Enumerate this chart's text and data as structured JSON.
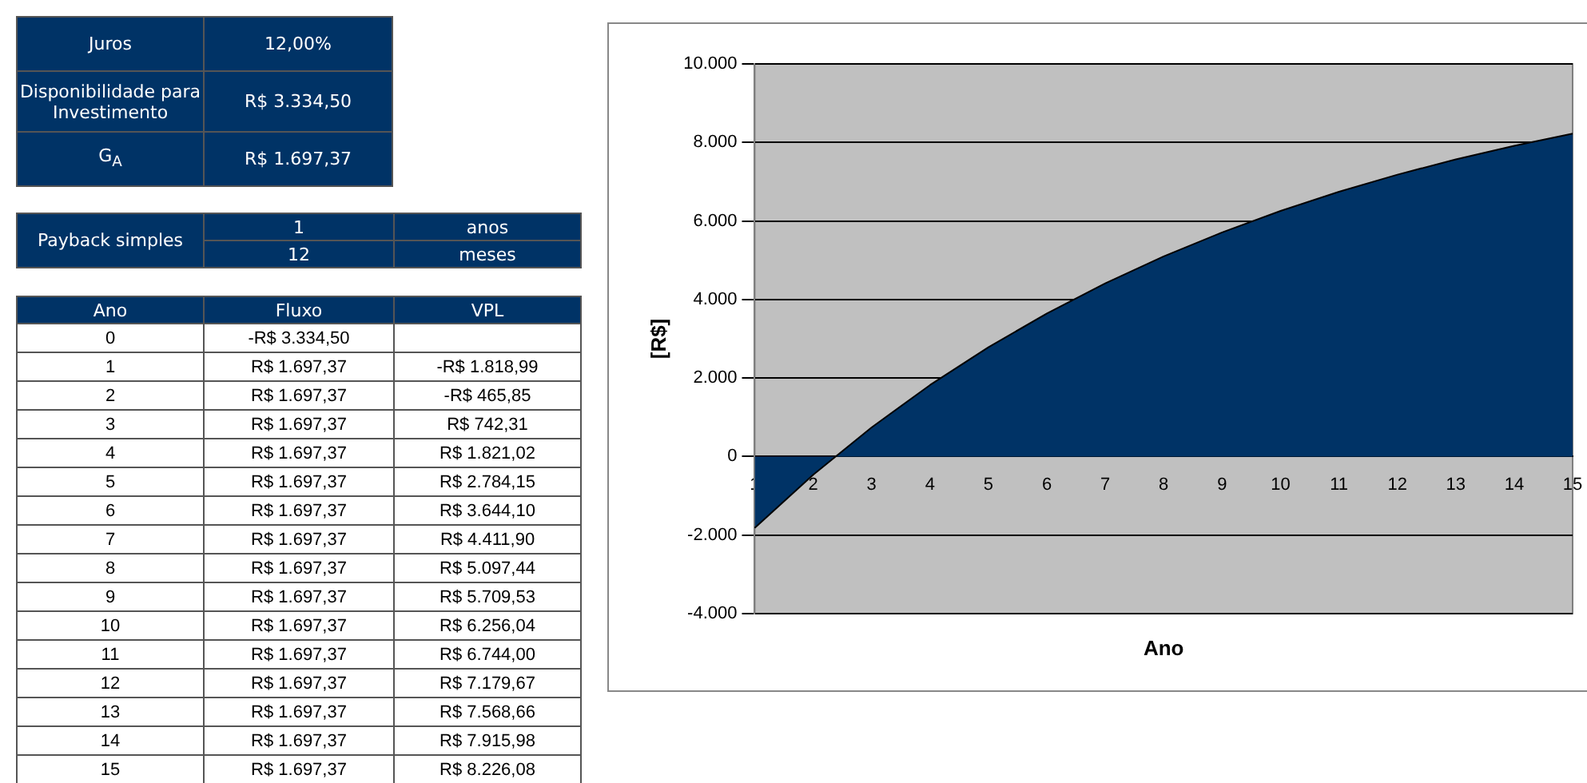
{
  "chart_data": {
    "type": "area",
    "xlabel": "Ano",
    "ylabel": "[R$]",
    "categories": [
      "1",
      "2",
      "3",
      "4",
      "5",
      "6",
      "7",
      "8",
      "9",
      "10",
      "11",
      "12",
      "13",
      "14",
      "15"
    ],
    "series": [
      {
        "color": "#003366",
        "values": [
          -1818.99,
          -465.85,
          742.31,
          1821.02,
          2784.15,
          3644.1,
          4411.9,
          5097.44,
          5709.53,
          6256.04,
          6744.0,
          7179.67,
          7568.66,
          7915.98,
          8226.08
        ]
      }
    ],
    "ylim": [
      -4000,
      10000
    ],
    "yticks": [
      {
        "value": -4000,
        "label": "-4.000"
      },
      {
        "value": -2000,
        "label": "-2.000"
      },
      0,
      {
        "value": 2000,
        "label": "2.000"
      },
      {
        "value": 4000,
        "label": "4.000"
      },
      {
        "value": 6000,
        "label": "6.000"
      },
      {
        "value": 8000,
        "label": "8.000"
      },
      {
        "value": 10000,
        "label": "10.000"
      }
    ],
    "grid": "y",
    "legend": false,
    "annotations": [
      "Juros",
      "12,00%",
      "Disponibilidade para Investimento",
      "R$ 3.334,50",
      "G$_{A}$",
      "R$ 1.697,37",
      "Payback simples",
      "1",
      "anos",
      "12",
      "meses",
      "Ano",
      "Fluxo",
      "VPL",
      "0",
      "-R$ 3.334,50",
      "R$ 1.697,37",
      "R$ 1.697,37",
      "R$ 1.697,37",
      "R$ 1.697,37",
      "R$ 1.697,37",
      "R$ 1.697,37",
      "R$ 1.697,37",
      "R$ 1.697,37",
      "R$ 1.697,37",
      "R$ 1.697,37",
      "R$ 1.697,37",
      "R$ 1.697,37",
      "R$ 1.697,37",
      "R$ 1.697,37",
      "R$ 1.697,37",
      "-R$ 1.818,99",
      "-R$ 465,85",
      "R$ 742,31",
      "R$ 1.821,02",
      "R$ 2.784,15",
      "R$ 3.644,10",
      "R$ 4.411,90",
      "R$ 5.097,44",
      "R$ 5.709,53",
      "R$ 6.256,04",
      "R$ 6.744,00",
      "R$ 7.179,67",
      "R$ 7.568,66",
      "R$ 7.915,98",
      "R$ 8.226,08"
    ]
  }
}
